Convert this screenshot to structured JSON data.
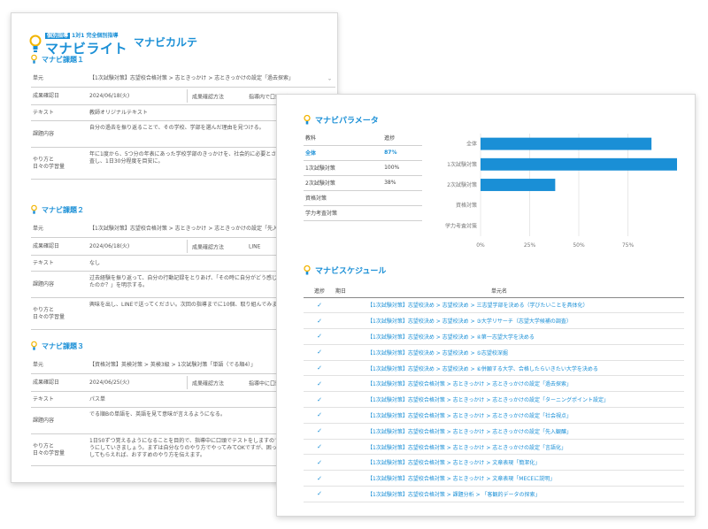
{
  "karte": {
    "tagline_badge": "個別指導",
    "tagline": "1対1 完全個別指導",
    "brand": "マナビライト",
    "title": "マナビカルテ",
    "sections": [
      {
        "heading": "マナビ課題１",
        "unit_label": "単元",
        "unit_value": "【1次試験対策】志望校合格対策 > 志ときっかけ > 志ときっかけの設定「過去探索」",
        "date_label": "成果確認日",
        "date_value": "2024/06/18(火)",
        "method_label": "成果確認方法",
        "method_value": "指導内で口頭確認",
        "text_label": "テキスト",
        "text_value": "教師オリジナルテキスト",
        "content_label": "課題内容",
        "content_value": "自分の過去を振り返ることで、その学校、学部を選んだ理由を見つける。",
        "howto_label1": "やり方と",
        "howto_label2": "日々の学習量",
        "howto_value": "年に1度から、5つ分の年表にあった学校学部のきっかけを、社会的に必要とされているかの観点から調査し、1日30分程度を目安に。"
      },
      {
        "heading": "マナビ課題２",
        "unit_label": "単元",
        "unit_value": "【1次試験対策】志望校合格対策 > 志ときっかけ > 志ときっかけの設定「先入観化」",
        "date_label": "成果確認日",
        "date_value": "2024/06/18(火)",
        "method_label": "成果確認方法",
        "method_value": "LINE",
        "text_label": "テキスト",
        "text_value": "なし",
        "content_label": "課題内容",
        "content_value": "过去経験を振り返って、自分の行動記録をとりあげ、「その時に自分がどう感じたか？」「なぜそう感じたのか？」を明示する。",
        "howto_label1": "やり方と",
        "howto_label2": "日々の学習量",
        "howto_value": "興味を出し、LINEで送ってください。次回の指導までに10個、取り組んでみましょう。"
      },
      {
        "heading": "マナビ課題３",
        "unit_label": "単元",
        "unit_value": "【資格対策】英検対策 > 英検3級 > 1次試験対策「単語（でる順4）」",
        "date_label": "成果確認日",
        "date_value": "2024/06/25(火)",
        "method_label": "成果確認方法",
        "method_value": "指導中に口頭でテスト",
        "text_label": "テキスト",
        "text_value": "パス単",
        "content_label": "課題内容",
        "content_value": "でる順Bの単語を、英語を見て意味が言えるようになる。",
        "howto_label1": "やり方と",
        "howto_label2": "日々の学習量",
        "howto_value": "1日50ずつ覚えるようになることを目的で、指導中に口頭でテストをしますので、すぐに答えられるようにしていきましょう。まずは自分なりのやり方でやってみてOKですが、困ったら教えてもらうようにしてもらえれば、おすすめのやり方を伝えます。"
      }
    ]
  },
  "param": {
    "title": "マナビパラメータ",
    "table_headers": [
      "教科",
      "進捗"
    ],
    "rows": [
      {
        "name": "全体",
        "value": "87%"
      },
      {
        "name": "1次試験対策",
        "value": "100%"
      },
      {
        "name": "2次試験対策",
        "value": "38%"
      },
      {
        "name": "資格対策",
        "value": ""
      },
      {
        "name": "学力考査対策",
        "value": ""
      }
    ]
  },
  "chart_data": {
    "type": "bar",
    "orientation": "horizontal",
    "categories": [
      "全体",
      "1次試験対策",
      "2次試験対策",
      "資格対策",
      "学力考査対策"
    ],
    "values": [
      87,
      100,
      38,
      0,
      0
    ],
    "xlim": [
      0,
      100
    ],
    "xticks": [
      "0%",
      "25%",
      "50%",
      "75%"
    ],
    "grid": true,
    "bar_color": "#1a8fd6"
  },
  "schedule": {
    "title": "マナビスケジュール",
    "headers": [
      "進捗",
      "期日",
      "単元名"
    ],
    "check_icon": "✓",
    "items": [
      "【1次試験対策】志望校決め > 志望校決め > 三志望学部を決める（学びたいことを具体化）",
      "【1次試験対策】志望校決め > 志望校決め > ③大学リサーチ（志望大学候補の調査）",
      "【1次試験対策】志望校決め > 志望校決め > ④第一志望大学を決める",
      "【1次試験対策】志望校決め > 志望校決め > ⑤志望校深掘",
      "【1次試験対策】志望校決め > 志望校決め > ⑥併願する大学、合格したらいきたい大学を決める",
      "【1次試験対策】志望校合格対策 > 志ときっかけ > 志ときっかけの設定「過去探索」",
      "【1次試験対策】志望校合格対策 > 志ときっかけ > 志ときっかけの設定「ターニングポイント設定」",
      "【1次試験対策】志望校合格対策 > 志ときっかけ > 志ときっかけの設定「社会視点」",
      "【1次試験対策】志望校合格対策 > 志ときっかけ > 志ときっかけの設定「先入観醸」",
      "【1次試験対策】志望校合格対策 > 志ときっかけ > 志ときっかけの設定「言語化」",
      "【1次試験対策】志望校合格対策 > 志ときっかけ > 文章表現「簡潔化」",
      "【1次試験対策】志望校合格対策 > 志ときっかけ > 文章表現「MECEに説明」",
      "【1次試験対策】志望校合格対策 > 課題分析 > 「客観的データの探索」"
    ]
  }
}
